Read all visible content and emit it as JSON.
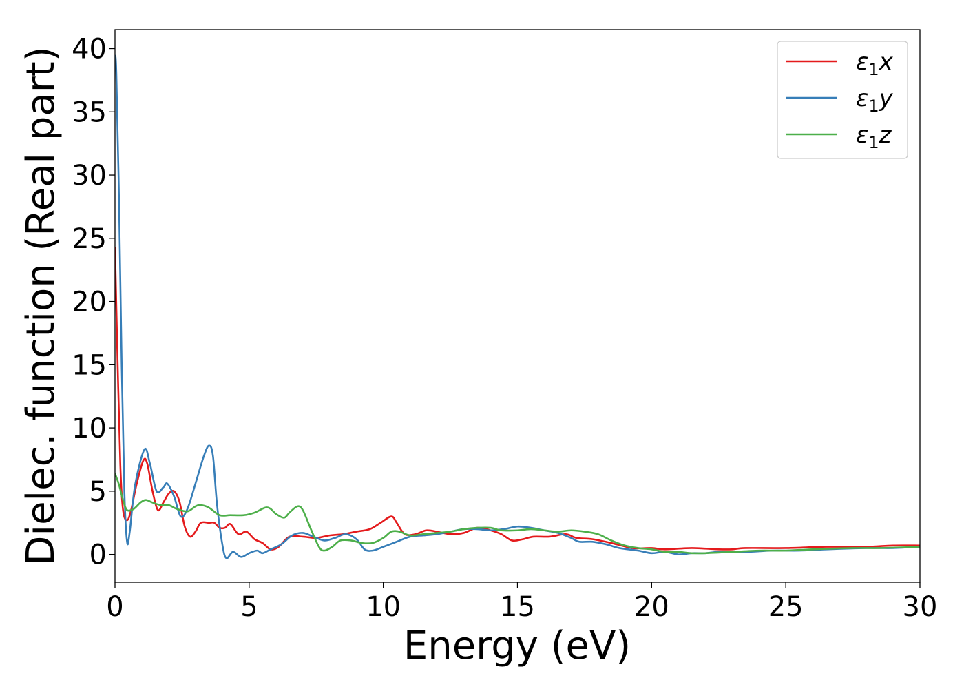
{
  "chart_data": {
    "type": "line",
    "xlabel": "Energy (eV)",
    "ylabel": "Dielec. function (Real part)",
    "xlim": [
      0,
      30
    ],
    "ylim": [
      -2.2,
      41.5
    ],
    "xticks": [
      0,
      5,
      10,
      15,
      20,
      25,
      30
    ],
    "yticks": [
      0,
      5,
      10,
      15,
      20,
      25,
      30,
      35,
      40
    ],
    "grid": false,
    "legend_position": "top-right",
    "series": [
      {
        "name": "ε₁x",
        "legend_main": "ε",
        "legend_sub": "1",
        "legend_tail": "x",
        "color": "#e41a1c",
        "points": [
          [
            0,
            24.3
          ],
          [
            0.1,
            15
          ],
          [
            0.2,
            7
          ],
          [
            0.3,
            3.5
          ],
          [
            0.45,
            2.7
          ],
          [
            0.6,
            3.5
          ],
          [
            0.8,
            5.5
          ],
          [
            1.05,
            7.4
          ],
          [
            1.2,
            7.2
          ],
          [
            1.4,
            5.0
          ],
          [
            1.6,
            3.5
          ],
          [
            1.8,
            4.1
          ],
          [
            2.0,
            4.8
          ],
          [
            2.2,
            5.0
          ],
          [
            2.4,
            4.2
          ],
          [
            2.6,
            2.2
          ],
          [
            2.8,
            1.4
          ],
          [
            3.0,
            1.8
          ],
          [
            3.2,
            2.5
          ],
          [
            3.5,
            2.5
          ],
          [
            3.7,
            2.5
          ],
          [
            3.9,
            2.1
          ],
          [
            4.1,
            2.1
          ],
          [
            4.3,
            2.4
          ],
          [
            4.6,
            1.6
          ],
          [
            4.9,
            1.8
          ],
          [
            5.2,
            1.2
          ],
          [
            5.5,
            0.9
          ],
          [
            5.8,
            0.4
          ],
          [
            6.1,
            0.6
          ],
          [
            6.5,
            1.4
          ],
          [
            7.0,
            1.4
          ],
          [
            7.5,
            1.3
          ],
          [
            8.0,
            1.5
          ],
          [
            8.5,
            1.6
          ],
          [
            9.0,
            1.8
          ],
          [
            9.5,
            2.0
          ],
          [
            9.9,
            2.5
          ],
          [
            10.3,
            3.0
          ],
          [
            10.5,
            2.5
          ],
          [
            10.8,
            1.6
          ],
          [
            11.2,
            1.6
          ],
          [
            11.6,
            1.9
          ],
          [
            12.0,
            1.8
          ],
          [
            12.5,
            1.6
          ],
          [
            13.0,
            1.7
          ],
          [
            13.5,
            2.1
          ],
          [
            14.0,
            1.9
          ],
          [
            14.4,
            1.6
          ],
          [
            14.8,
            1.1
          ],
          [
            15.2,
            1.2
          ],
          [
            15.6,
            1.4
          ],
          [
            16.2,
            1.4
          ],
          [
            16.8,
            1.6
          ],
          [
            17.2,
            1.3
          ],
          [
            17.8,
            1.2
          ],
          [
            18.5,
            0.9
          ],
          [
            19.3,
            0.5
          ],
          [
            20.0,
            0.5
          ],
          [
            20.5,
            0.4
          ],
          [
            21.5,
            0.5
          ],
          [
            22.5,
            0.4
          ],
          [
            23.0,
            0.4
          ],
          [
            23.5,
            0.5
          ],
          [
            25.0,
            0.5
          ],
          [
            26.5,
            0.6
          ],
          [
            28.0,
            0.6
          ],
          [
            29.0,
            0.7
          ],
          [
            30.0,
            0.7
          ]
        ]
      },
      {
        "name": "ε₁y",
        "legend_main": "ε",
        "legend_sub": "1",
        "legend_tail": "y",
        "color": "#377eb8",
        "points": [
          [
            0,
            39.5
          ],
          [
            0.05,
            38
          ],
          [
            0.15,
            28
          ],
          [
            0.25,
            15
          ],
          [
            0.35,
            5
          ],
          [
            0.45,
            1.0
          ],
          [
            0.55,
            1.8
          ],
          [
            0.75,
            5.5
          ],
          [
            1.1,
            8.3
          ],
          [
            1.3,
            7.2
          ],
          [
            1.55,
            5.0
          ],
          [
            1.8,
            5.3
          ],
          [
            1.95,
            5.6
          ],
          [
            2.2,
            4.6
          ],
          [
            2.45,
            3.0
          ],
          [
            2.7,
            3.6
          ],
          [
            3.0,
            5.6
          ],
          [
            3.3,
            7.7
          ],
          [
            3.5,
            8.6
          ],
          [
            3.65,
            7.8
          ],
          [
            3.8,
            4.0
          ],
          [
            4.0,
            0.8
          ],
          [
            4.15,
            -0.3
          ],
          [
            4.4,
            0.2
          ],
          [
            4.7,
            -0.2
          ],
          [
            5.0,
            0.1
          ],
          [
            5.3,
            0.3
          ],
          [
            5.5,
            0.1
          ],
          [
            5.8,
            0.4
          ],
          [
            6.2,
            0.8
          ],
          [
            6.6,
            1.5
          ],
          [
            7.0,
            1.7
          ],
          [
            7.4,
            1.4
          ],
          [
            7.8,
            1.1
          ],
          [
            8.2,
            1.3
          ],
          [
            8.6,
            1.6
          ],
          [
            9.0,
            1.2
          ],
          [
            9.3,
            0.4
          ],
          [
            9.6,
            0.3
          ],
          [
            10.0,
            0.6
          ],
          [
            10.5,
            1.0
          ],
          [
            11.0,
            1.4
          ],
          [
            11.5,
            1.5
          ],
          [
            12.0,
            1.6
          ],
          [
            12.5,
            1.8
          ],
          [
            13.0,
            2.0
          ],
          [
            13.5,
            2.0
          ],
          [
            14.0,
            1.9
          ],
          [
            14.5,
            2.0
          ],
          [
            15.0,
            2.2
          ],
          [
            15.5,
            2.1
          ],
          [
            16.0,
            1.9
          ],
          [
            16.5,
            1.7
          ],
          [
            17.0,
            1.3
          ],
          [
            17.3,
            1.0
          ],
          [
            17.8,
            1.0
          ],
          [
            18.3,
            0.8
          ],
          [
            18.8,
            0.5
          ],
          [
            19.5,
            0.3
          ],
          [
            20.0,
            0.1
          ],
          [
            20.5,
            0.2
          ],
          [
            21.0,
            0.0
          ],
          [
            21.5,
            0.1
          ],
          [
            22.0,
            0.1
          ],
          [
            22.5,
            0.2
          ],
          [
            23.5,
            0.2
          ],
          [
            24.5,
            0.3
          ],
          [
            25.5,
            0.3
          ],
          [
            26.5,
            0.4
          ],
          [
            28.0,
            0.5
          ],
          [
            29.0,
            0.5
          ],
          [
            30.0,
            0.6
          ]
        ]
      },
      {
        "name": "ε₁z",
        "legend_main": "ε",
        "legend_sub": "1",
        "legend_tail": "z",
        "color": "#4daf4a",
        "points": [
          [
            0,
            6.4
          ],
          [
            0.15,
            5.5
          ],
          [
            0.3,
            4.3
          ],
          [
            0.45,
            3.5
          ],
          [
            0.7,
            3.6
          ],
          [
            0.95,
            4.1
          ],
          [
            1.15,
            4.3
          ],
          [
            1.4,
            4.1
          ],
          [
            1.7,
            3.9
          ],
          [
            2.0,
            3.9
          ],
          [
            2.3,
            3.6
          ],
          [
            2.7,
            3.4
          ],
          [
            3.0,
            3.8
          ],
          [
            3.2,
            3.9
          ],
          [
            3.5,
            3.7
          ],
          [
            3.9,
            3.1
          ],
          [
            4.3,
            3.1
          ],
          [
            4.8,
            3.1
          ],
          [
            5.2,
            3.3
          ],
          [
            5.6,
            3.7
          ],
          [
            5.8,
            3.6
          ],
          [
            6.0,
            3.2
          ],
          [
            6.3,
            2.9
          ],
          [
            6.5,
            3.3
          ],
          [
            6.8,
            3.8
          ],
          [
            7.0,
            3.5
          ],
          [
            7.3,
            2.0
          ],
          [
            7.6,
            0.6
          ],
          [
            7.8,
            0.3
          ],
          [
            8.1,
            0.6
          ],
          [
            8.4,
            1.1
          ],
          [
            8.8,
            1.1
          ],
          [
            9.2,
            0.9
          ],
          [
            9.6,
            0.9
          ],
          [
            10.0,
            1.3
          ],
          [
            10.3,
            1.8
          ],
          [
            10.6,
            1.8
          ],
          [
            11.0,
            1.5
          ],
          [
            11.5,
            1.6
          ],
          [
            12.0,
            1.7
          ],
          [
            12.5,
            1.8
          ],
          [
            13.0,
            2.0
          ],
          [
            13.5,
            2.1
          ],
          [
            14.0,
            2.1
          ],
          [
            14.4,
            1.9
          ],
          [
            15.0,
            1.9
          ],
          [
            15.5,
            2.0
          ],
          [
            16.0,
            1.9
          ],
          [
            16.5,
            1.8
          ],
          [
            17.0,
            1.9
          ],
          [
            17.5,
            1.8
          ],
          [
            18.0,
            1.6
          ],
          [
            18.5,
            1.1
          ],
          [
            19.0,
            0.7
          ],
          [
            19.5,
            0.5
          ],
          [
            20.0,
            0.4
          ],
          [
            20.5,
            0.2
          ],
          [
            21.0,
            0.2
          ],
          [
            21.5,
            0.1
          ],
          [
            22.0,
            0.1
          ],
          [
            23.0,
            0.2
          ],
          [
            24.0,
            0.3
          ],
          [
            25.0,
            0.3
          ],
          [
            26.0,
            0.4
          ],
          [
            27.5,
            0.5
          ],
          [
            28.5,
            0.5
          ],
          [
            30.0,
            0.6
          ]
        ]
      }
    ]
  }
}
